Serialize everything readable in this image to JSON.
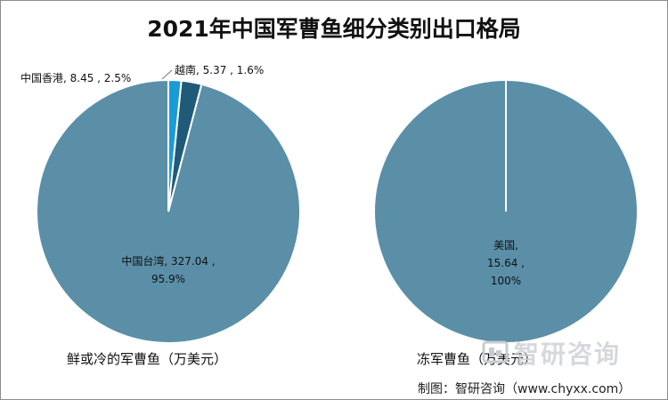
{
  "title": "2021年中国军曹鱼细分类别出口格局",
  "watermark": "智研咨询",
  "source": "制图：智研咨询（www.chyxx.com）",
  "chart_data": [
    {
      "type": "pie",
      "caption": "鲜或冷的军曹鱼（万美元）",
      "slices": [
        {
          "label": "中国台湾",
          "value": 327.04,
          "percent": "95.9%",
          "color": "#5b8fa8"
        },
        {
          "label": "中国香港",
          "value": 8.45,
          "percent": "2.5%",
          "color": "#1f5a78"
        },
        {
          "label": "越南",
          "value": 5.37,
          "percent": "1.6%",
          "color": "#1b9bd6"
        }
      ],
      "data_labels": [
        "中国台湾, 327.04 ,",
        "95.9%",
        "中国香港, 8.45 , 2.5%",
        "越南, 5.37 , 1.6%"
      ]
    },
    {
      "type": "pie",
      "caption": "冻军曹鱼（万美元）",
      "slices": [
        {
          "label": "美国",
          "value": 15.64,
          "percent": "100%",
          "color": "#5b8fa8"
        }
      ],
      "data_labels": [
        "美国,",
        "15.64 ,",
        "100%"
      ]
    }
  ]
}
